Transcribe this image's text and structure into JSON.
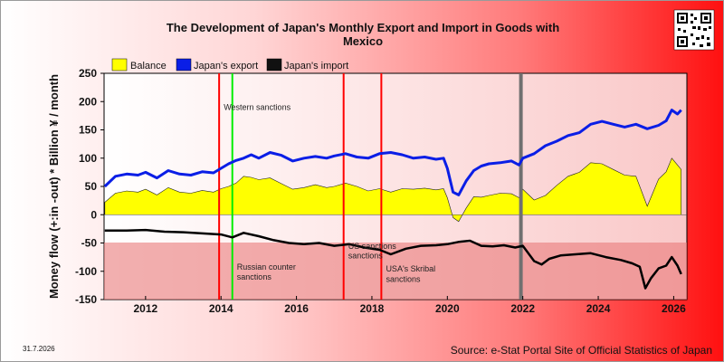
{
  "chart_data": {
    "type": "line",
    "title_line1": "The Development of Japan's Monthly Export and Import in Goods with",
    "title_line2": "Mexico",
    "ylabel": "Money flow (+:in -out) * Billion ¥ / month",
    "xlabel": "",
    "ylim": [
      -150,
      250
    ],
    "xlim": [
      2010.9,
      2026.35
    ],
    "y_ticks": [
      "250",
      "200",
      "150",
      "100",
      "50",
      "0",
      "-50",
      "-100",
      "-150"
    ],
    "x_ticks": [
      "2012",
      "2014",
      "2016",
      "2018",
      "2020",
      "2022",
      "2024",
      "2026"
    ],
    "legend": [
      {
        "name": "Balance",
        "color": "#ffff00"
      },
      {
        "name": "Japan's export",
        "color": "#0a1ee6"
      },
      {
        "name": "Japan's import",
        "color": "#000000"
      }
    ],
    "series": [
      {
        "name": "Japan's export",
        "points": [
          [
            2010.92,
            50
          ],
          [
            2011.2,
            68
          ],
          [
            2011.5,
            72
          ],
          [
            2011.8,
            70
          ],
          [
            2012.0,
            75
          ],
          [
            2012.3,
            65
          ],
          [
            2012.6,
            78
          ],
          [
            2012.9,
            72
          ],
          [
            2013.2,
            70
          ],
          [
            2013.5,
            76
          ],
          [
            2013.8,
            74
          ],
          [
            2014.0,
            82
          ],
          [
            2014.2,
            90
          ],
          [
            2014.4,
            96
          ],
          [
            2014.6,
            100
          ],
          [
            2014.8,
            106
          ],
          [
            2015.0,
            100
          ],
          [
            2015.3,
            110
          ],
          [
            2015.6,
            105
          ],
          [
            2015.9,
            95
          ],
          [
            2016.2,
            100
          ],
          [
            2016.5,
            103
          ],
          [
            2016.8,
            100
          ],
          [
            2017.0,
            104
          ],
          [
            2017.3,
            108
          ],
          [
            2017.6,
            102
          ],
          [
            2017.9,
            100
          ],
          [
            2018.2,
            108
          ],
          [
            2018.5,
            110
          ],
          [
            2018.8,
            106
          ],
          [
            2019.1,
            100
          ],
          [
            2019.4,
            102
          ],
          [
            2019.7,
            98
          ],
          [
            2019.9,
            100
          ],
          [
            2020.0,
            82
          ],
          [
            2020.15,
            40
          ],
          [
            2020.3,
            35
          ],
          [
            2020.5,
            60
          ],
          [
            2020.7,
            78
          ],
          [
            2020.9,
            86
          ],
          [
            2021.1,
            90
          ],
          [
            2021.4,
            92
          ],
          [
            2021.7,
            95
          ],
          [
            2021.9,
            88
          ],
          [
            2022.0,
            100
          ],
          [
            2022.3,
            108
          ],
          [
            2022.6,
            122
          ],
          [
            2022.9,
            130
          ],
          [
            2023.2,
            140
          ],
          [
            2023.5,
            145
          ],
          [
            2023.8,
            160
          ],
          [
            2024.1,
            165
          ],
          [
            2024.4,
            160
          ],
          [
            2024.7,
            155
          ],
          [
            2025.0,
            160
          ],
          [
            2025.3,
            152
          ],
          [
            2025.6,
            158
          ],
          [
            2025.8,
            166
          ],
          [
            2025.95,
            185
          ],
          [
            2026.1,
            178
          ],
          [
            2026.2,
            185
          ]
        ]
      },
      {
        "name": "Japan's import",
        "points": [
          [
            2010.92,
            -28
          ],
          [
            2011.5,
            -28
          ],
          [
            2012.0,
            -27
          ],
          [
            2012.5,
            -30
          ],
          [
            2013.0,
            -31
          ],
          [
            2013.5,
            -33
          ],
          [
            2014.0,
            -35
          ],
          [
            2014.3,
            -40
          ],
          [
            2014.6,
            -32
          ],
          [
            2015.0,
            -38
          ],
          [
            2015.4,
            -45
          ],
          [
            2015.8,
            -50
          ],
          [
            2016.2,
            -52
          ],
          [
            2016.6,
            -50
          ],
          [
            2017.0,
            -55
          ],
          [
            2017.4,
            -52
          ],
          [
            2017.8,
            -58
          ],
          [
            2018.2,
            -62
          ],
          [
            2018.5,
            -70
          ],
          [
            2018.9,
            -60
          ],
          [
            2019.3,
            -55
          ],
          [
            2019.7,
            -54
          ],
          [
            2020.0,
            -52
          ],
          [
            2020.3,
            -48
          ],
          [
            2020.6,
            -46
          ],
          [
            2020.9,
            -55
          ],
          [
            2021.2,
            -56
          ],
          [
            2021.5,
            -54
          ],
          [
            2021.8,
            -58
          ],
          [
            2022.0,
            -55
          ],
          [
            2022.3,
            -82
          ],
          [
            2022.5,
            -88
          ],
          [
            2022.7,
            -78
          ],
          [
            2023.0,
            -72
          ],
          [
            2023.4,
            -70
          ],
          [
            2023.8,
            -68
          ],
          [
            2024.2,
            -75
          ],
          [
            2024.6,
            -80
          ],
          [
            2024.9,
            -86
          ],
          [
            2025.1,
            -92
          ],
          [
            2025.25,
            -130
          ],
          [
            2025.4,
            -112
          ],
          [
            2025.6,
            -95
          ],
          [
            2025.8,
            -90
          ],
          [
            2025.95,
            -75
          ],
          [
            2026.1,
            -90
          ],
          [
            2026.2,
            -105
          ]
        ]
      },
      {
        "name": "Balance",
        "points": [
          [
            2010.92,
            22
          ],
          [
            2011.2,
            38
          ],
          [
            2011.5,
            42
          ],
          [
            2011.8,
            40
          ],
          [
            2012.0,
            45
          ],
          [
            2012.3,
            35
          ],
          [
            2012.6,
            48
          ],
          [
            2012.9,
            40
          ],
          [
            2013.2,
            38
          ],
          [
            2013.5,
            43
          ],
          [
            2013.8,
            40
          ],
          [
            2014.0,
            46
          ],
          [
            2014.2,
            50
          ],
          [
            2014.4,
            56
          ],
          [
            2014.6,
            68
          ],
          [
            2014.8,
            66
          ],
          [
            2015.0,
            62
          ],
          [
            2015.3,
            65
          ],
          [
            2015.6,
            55
          ],
          [
            2015.9,
            45
          ],
          [
            2016.2,
            48
          ],
          [
            2016.5,
            53
          ],
          [
            2016.8,
            48
          ],
          [
            2017.0,
            50
          ],
          [
            2017.3,
            56
          ],
          [
            2017.6,
            50
          ],
          [
            2017.9,
            42
          ],
          [
            2018.2,
            46
          ],
          [
            2018.5,
            40
          ],
          [
            2018.8,
            46
          ],
          [
            2019.1,
            45
          ],
          [
            2019.4,
            47
          ],
          [
            2019.7,
            44
          ],
          [
            2019.9,
            46
          ],
          [
            2020.0,
            30
          ],
          [
            2020.15,
            -5
          ],
          [
            2020.3,
            -12
          ],
          [
            2020.5,
            12
          ],
          [
            2020.7,
            32
          ],
          [
            2020.9,
            31
          ],
          [
            2021.1,
            34
          ],
          [
            2021.4,
            38
          ],
          [
            2021.7,
            37
          ],
          [
            2021.9,
            30
          ],
          [
            2022.0,
            45
          ],
          [
            2022.3,
            26
          ],
          [
            2022.6,
            34
          ],
          [
            2022.9,
            52
          ],
          [
            2023.2,
            68
          ],
          [
            2023.5,
            75
          ],
          [
            2023.8,
            92
          ],
          [
            2024.1,
            90
          ],
          [
            2024.4,
            80
          ],
          [
            2024.7,
            70
          ],
          [
            2025.0,
            68
          ],
          [
            2025.3,
            15
          ],
          [
            2025.6,
            63
          ],
          [
            2025.8,
            76
          ],
          [
            2025.95,
            100
          ],
          [
            2026.1,
            88
          ],
          [
            2026.2,
            80
          ]
        ]
      }
    ],
    "events": [
      {
        "x": 2013.95,
        "color": "#ff0000",
        "label": ""
      },
      {
        "x": 2014.3,
        "color": "#00ee00",
        "label": ""
      },
      {
        "x": 2017.25,
        "color": "#ff0000",
        "label": ""
      },
      {
        "x": 2018.25,
        "color": "#ff0000",
        "label": ""
      },
      {
        "x": 2021.95,
        "color": "#707070",
        "label": ""
      }
    ],
    "annotations": [
      {
        "x": 2014.0,
        "y": 185,
        "text": "Western sanctions"
      },
      {
        "x": 2014.35,
        "y": -97,
        "text": "Russian counter"
      },
      {
        "x": 2014.35,
        "y": -115,
        "text": "sanctions"
      },
      {
        "x": 2017.3,
        "y": -60,
        "text": "US sanctions"
      },
      {
        "x": 2017.3,
        "y": -77,
        "text": "sanctions"
      },
      {
        "x": 2018.3,
        "y": -100,
        "text": "USA's Skribal"
      },
      {
        "x": 2018.3,
        "y": -119,
        "text": "sanctions"
      }
    ],
    "grid": false
  },
  "footer": {
    "source": "Source: e-Stat Portal Site of Official Statistics of Japan",
    "date": "31.7.2026"
  },
  "qr_icon": "qr-code-icon"
}
